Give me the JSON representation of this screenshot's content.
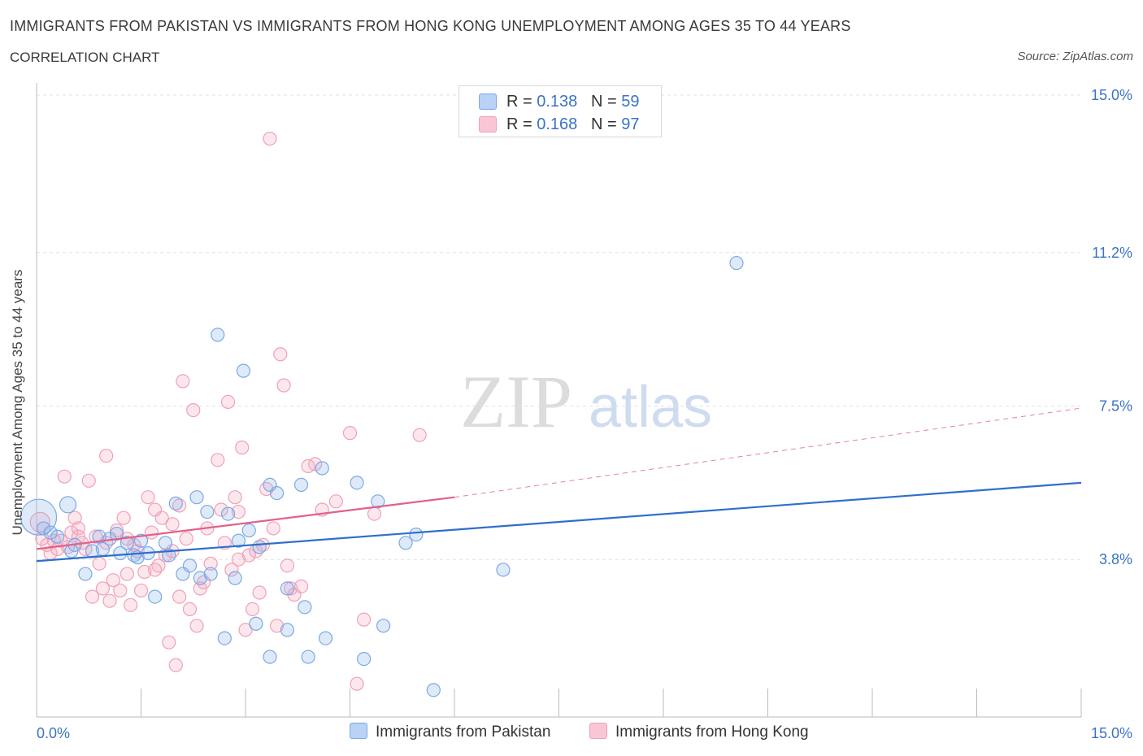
{
  "header": {
    "title": "IMMIGRANTS FROM PAKISTAN VS IMMIGRANTS FROM HONG KONG UNEMPLOYMENT AMONG AGES 35 TO 44 YEARS",
    "subtitle": "CORRELATION CHART",
    "source": "Source: ZipAtlas.com"
  },
  "watermark": {
    "zip": "ZIP",
    "atlas": "atlas"
  },
  "legend": {
    "pakistan": {
      "r_label": "R = ",
      "r_value": "0.138",
      "n_label": "N = ",
      "n_value": "59"
    },
    "hongkong": {
      "r_label": "R = ",
      "r_value": "0.168",
      "n_label": "N = ",
      "n_value": "97"
    }
  },
  "chart_data": {
    "type": "scatter",
    "title": "IMMIGRANTS FROM PAKISTAN VS IMMIGRANTS FROM HONG KONG UNEMPLOYMENT AMONG AGES 35 TO 44 YEARS",
    "xlabel": "",
    "ylabel": "Unemployment Among Ages 35 to 44 years",
    "xlim": [
      0,
      15
    ],
    "ylim": [
      0,
      15
    ],
    "x_tick_labels": [
      "0.0%",
      "15.0%"
    ],
    "y_ticks": [
      3.8,
      7.5,
      11.2,
      15.0
    ],
    "y_tick_labels": [
      "3.8%",
      "7.5%",
      "11.2%",
      "15.0%"
    ],
    "grid": true,
    "legend_position": "top-center",
    "colors": {
      "pakistan": "#7aa9e6",
      "pakistan_line": "#2f6fcc",
      "hongkong": "#f0a0b8",
      "hongkong_line": "#e2608a"
    },
    "series": [
      {
        "name": "Immigrants from Pakistan",
        "R": 0.138,
        "N": 59,
        "trend": {
          "x": [
            0,
            15
          ],
          "y": [
            3.76,
            5.65
          ]
        },
        "points": [
          [
            0.03,
            4.82,
            22
          ],
          [
            0.45,
            5.12,
            10
          ],
          [
            0.1,
            4.55,
            8
          ],
          [
            0.2,
            4.45,
            8
          ],
          [
            0.3,
            4.35,
            8
          ],
          [
            0.5,
            4.0,
            8
          ],
          [
            0.55,
            4.15,
            8
          ],
          [
            0.7,
            3.45,
            8
          ],
          [
            0.8,
            4.0,
            8
          ],
          [
            0.9,
            4.35,
            8
          ],
          [
            0.95,
            4.05,
            8
          ],
          [
            1.05,
            4.3,
            8
          ],
          [
            1.15,
            4.42,
            8
          ],
          [
            1.2,
            3.95,
            8
          ],
          [
            1.3,
            4.2,
            8
          ],
          [
            1.4,
            3.9,
            8
          ],
          [
            1.45,
            3.85,
            8
          ],
          [
            1.5,
            4.25,
            8
          ],
          [
            1.6,
            3.95,
            8
          ],
          [
            1.7,
            2.9,
            8
          ],
          [
            1.9,
            3.9,
            8
          ],
          [
            1.85,
            4.2,
            8
          ],
          [
            2.0,
            5.15,
            8
          ],
          [
            2.1,
            3.45,
            8
          ],
          [
            2.2,
            3.65,
            8
          ],
          [
            2.3,
            5.3,
            8
          ],
          [
            2.35,
            3.35,
            8
          ],
          [
            2.45,
            4.95,
            8
          ],
          [
            2.5,
            3.45,
            8
          ],
          [
            2.6,
            9.22,
            8
          ],
          [
            2.7,
            1.9,
            8
          ],
          [
            2.75,
            4.9,
            8
          ],
          [
            2.85,
            3.35,
            8
          ],
          [
            2.9,
            4.25,
            8
          ],
          [
            2.97,
            8.35,
            8
          ],
          [
            3.05,
            4.5,
            8
          ],
          [
            3.15,
            2.25,
            8
          ],
          [
            3.2,
            4.1,
            8
          ],
          [
            3.35,
            1.45,
            8
          ],
          [
            3.35,
            5.6,
            8
          ],
          [
            3.45,
            5.4,
            8
          ],
          [
            3.6,
            2.1,
            8
          ],
          [
            3.6,
            3.1,
            8
          ],
          [
            3.8,
            5.6,
            8
          ],
          [
            3.85,
            2.65,
            8
          ],
          [
            3.9,
            1.45,
            8
          ],
          [
            4.1,
            6.0,
            8
          ],
          [
            4.15,
            1.9,
            8
          ],
          [
            4.6,
            5.65,
            8
          ],
          [
            4.7,
            1.4,
            8
          ],
          [
            4.9,
            5.2,
            8
          ],
          [
            4.98,
            2.2,
            8
          ],
          [
            5.3,
            4.2,
            8
          ],
          [
            5.45,
            4.4,
            8
          ],
          [
            5.7,
            0.65,
            8
          ],
          [
            6.7,
            3.55,
            8
          ],
          [
            10.05,
            10.95,
            8
          ]
        ]
      },
      {
        "name": "Immigrants from Hong Kong",
        "R": 0.168,
        "N": 97,
        "trend": {
          "x": [
            0,
            6.0
          ],
          "y": [
            4.05,
            5.3
          ]
        },
        "trend_extension": {
          "x": [
            6.0,
            15
          ],
          "y": [
            5.3,
            7.45
          ]
        },
        "points": [
          [
            0.05,
            4.7,
            12
          ],
          [
            0.08,
            4.3,
            8
          ],
          [
            0.15,
            4.15,
            8
          ],
          [
            0.2,
            3.95,
            8
          ],
          [
            0.25,
            4.25,
            8
          ],
          [
            0.3,
            4.05,
            8
          ],
          [
            0.35,
            4.25,
            8
          ],
          [
            0.4,
            5.8,
            8
          ],
          [
            0.5,
            4.45,
            8
          ],
          [
            0.55,
            4.8,
            8
          ],
          [
            0.6,
            4.55,
            8
          ],
          [
            0.65,
            4.2,
            8
          ],
          [
            0.7,
            4.05,
            8
          ],
          [
            0.75,
            5.7,
            8
          ],
          [
            0.8,
            2.9,
            8
          ],
          [
            0.85,
            4.35,
            8
          ],
          [
            0.9,
            3.7,
            8
          ],
          [
            0.95,
            3.1,
            8
          ],
          [
            1.0,
            4.2,
            8
          ],
          [
            1.0,
            6.3,
            8
          ],
          [
            1.05,
            2.8,
            8
          ],
          [
            1.1,
            3.3,
            8
          ],
          [
            1.15,
            4.5,
            8
          ],
          [
            1.2,
            3.05,
            8
          ],
          [
            1.25,
            4.8,
            8
          ],
          [
            1.3,
            3.45,
            8
          ],
          [
            1.35,
            2.7,
            8
          ],
          [
            1.4,
            4.15,
            8
          ],
          [
            1.45,
            4.0,
            8
          ],
          [
            1.5,
            3.05,
            8
          ],
          [
            1.55,
            3.5,
            8
          ],
          [
            1.6,
            5.3,
            8
          ],
          [
            1.65,
            4.45,
            8
          ],
          [
            1.7,
            5.0,
            8
          ],
          [
            1.75,
            3.65,
            8
          ],
          [
            1.8,
            4.8,
            8
          ],
          [
            1.85,
            3.9,
            8
          ],
          [
            1.9,
            1.8,
            8
          ],
          [
            1.95,
            4.65,
            8
          ],
          [
            2.0,
            1.25,
            8
          ],
          [
            2.05,
            2.9,
            8
          ],
          [
            2.1,
            8.1,
            8
          ],
          [
            2.15,
            4.3,
            8
          ],
          [
            2.2,
            2.6,
            8
          ],
          [
            2.25,
            7.4,
            8
          ],
          [
            2.3,
            2.2,
            8
          ],
          [
            2.35,
            3.1,
            8
          ],
          [
            2.45,
            4.55,
            8
          ],
          [
            2.5,
            3.7,
            8
          ],
          [
            2.6,
            6.2,
            8
          ],
          [
            2.65,
            5.0,
            8
          ],
          [
            2.7,
            4.2,
            8
          ],
          [
            2.75,
            7.6,
            8
          ],
          [
            2.8,
            3.55,
            8
          ],
          [
            2.85,
            5.3,
            8
          ],
          [
            2.9,
            4.95,
            8
          ],
          [
            2.95,
            6.5,
            8
          ],
          [
            3.0,
            2.1,
            8
          ],
          [
            3.05,
            3.9,
            8
          ],
          [
            3.1,
            2.6,
            8
          ],
          [
            3.15,
            4.0,
            8
          ],
          [
            3.2,
            3.0,
            8
          ],
          [
            3.25,
            4.15,
            8
          ],
          [
            3.3,
            5.5,
            8
          ],
          [
            3.35,
            13.95,
            8
          ],
          [
            3.4,
            4.55,
            8
          ],
          [
            3.5,
            8.75,
            8
          ],
          [
            3.55,
            8.0,
            8
          ],
          [
            3.6,
            3.65,
            8
          ],
          [
            3.65,
            3.1,
            8
          ],
          [
            3.7,
            2.95,
            8
          ],
          [
            3.8,
            3.15,
            8
          ],
          [
            3.9,
            6.05,
            8
          ],
          [
            4.0,
            6.1,
            8
          ],
          [
            4.1,
            5.0,
            8
          ],
          [
            4.3,
            5.2,
            8
          ],
          [
            4.5,
            6.85,
            8
          ],
          [
            4.6,
            0.8,
            8
          ],
          [
            4.7,
            2.35,
            8
          ],
          [
            4.85,
            4.9,
            8
          ],
          [
            5.5,
            6.8,
            8
          ],
          [
            0.6,
            4.35,
            8
          ],
          [
            0.45,
            4.1,
            8
          ],
          [
            1.95,
            4.0,
            8
          ],
          [
            2.4,
            3.25,
            8
          ],
          [
            1.7,
            3.55,
            8
          ],
          [
            2.05,
            5.1,
            8
          ],
          [
            3.45,
            2.2,
            8
          ],
          [
            2.9,
            3.8,
            8
          ],
          [
            1.3,
            4.3,
            8
          ]
        ]
      }
    ]
  },
  "bottom_legend": {
    "pakistan": "Immigrants from Pakistan",
    "hongkong": "Immigrants from Hong Kong"
  }
}
